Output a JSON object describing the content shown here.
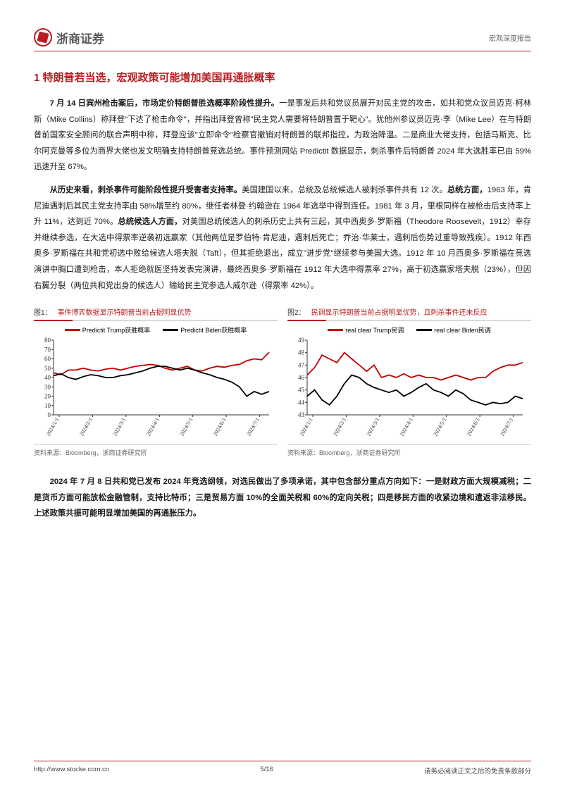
{
  "header": {
    "company": "浙商证券",
    "report_type": "宏观深度报告"
  },
  "section_title": "1 特朗普若当选，宏观政策可能增加美国再通胀概率",
  "para1_lead": "7 月 14 日宾州枪击案后，市场定价特朗普胜选概率阶段性提升。",
  "para1_body": "一是事发后共和党议员展开对民主党的攻击，如共和党众议员迈克·柯林斯（Mike Collins）称拜登\"下达了枪击命令\"，并指出拜登曾称\"民主党人需要将特朗普置于靶心\"。犹他州参议员迈克·李（Mike Lee）在与特朗普前国家安全顾问的联合声明中称，拜登应该\"立即命令\"检察官撤销对特朗普的联邦指控，为政治降温。二是商业大佬支持，包括马斯克、比尔阿克曼等多位为商界大佬也发文明确支持特朗普竞选总统。事件预测网站 Predictit 数据显示，刺杀事件后特朗普 2024 年大选胜率已由 59%迅速升至 67%。",
  "para2_lead": "从历史来看，刺杀事件可能阶段性提升受害者支持率。",
  "para2_body1": "美国建国以来，总统及总统候选人被刺杀事件共有 12 次。",
  "para2_bold2": "总统方面，",
  "para2_body2": "1963 年，肯尼迪遇刺后其民主党支持率由 58%增至约 80%，继任者林登·约翰逊在 1964 年选举中得到连任。1981 年 3 月，里根同样在被枪击后支持率上升 11%，达到近 70%。",
  "para2_bold3": "总统候选人方面，",
  "para2_body3": "对美国总统候选人的刺杀历史上共有三起，其中西奥多·罗斯福（Theodore Roosevelt，1912）幸存并继续参选，在大选中得票率逆袭初选赢家（其他两位是罗伯特·肯尼迪，遇刺后死亡；乔治·华莱士，遇刺后伤势过重导致残疾）。1912 年西奥多·罗斯福在共和党初选中败给候选人塔夫脱（Taft），但其拒绝退出，成立\"进步党\"继续参与美国大选。1912 年 10 月西奥多·罗斯福在竞选演讲中胸口遭到枪击，本人拒绝就医坚持发表完演讲，最终西奥多·罗斯福在 1912 年大选中得票率 27%，高于初选赢家塔夫脱（23%），但因右翼分裂（两位共和党出身的候选人）输给民主党参选人威尔逊（得票率 42%）。",
  "chart1": {
    "fig_label": "图1：",
    "title": "事件博弈数据显示特朗普当前占据明显优势",
    "legend": [
      {
        "label": "Predictit Trump获胜概率",
        "color": "#c00000"
      },
      {
        "label": "Predictit Biden获胜概率",
        "color": "#000000"
      }
    ],
    "categories": [
      "2024/1/1",
      "2024/2/1",
      "2024/3/1",
      "2024/4/1",
      "2024/5/1",
      "2024/6/1",
      "2024/7/1"
    ],
    "x_ticks": [
      0,
      1,
      2,
      3,
      4,
      5,
      6
    ],
    "ylim": [
      0,
      80
    ],
    "yticks": [
      0,
      10,
      20,
      30,
      40,
      50,
      60,
      70,
      80
    ],
    "series": [
      {
        "color": "#c00000",
        "data": [
          45,
          43,
          48,
          48,
          50,
          48,
          47,
          49,
          50,
          48,
          50,
          52,
          53,
          54,
          53,
          50,
          48,
          50,
          52,
          48,
          47,
          50,
          52,
          51,
          53,
          54,
          58,
          60,
          59,
          67
        ]
      },
      {
        "color": "#000000",
        "data": [
          42,
          44,
          40,
          38,
          41,
          43,
          42,
          40,
          40,
          42,
          43,
          45,
          47,
          50,
          52,
          52,
          50,
          48,
          50,
          48,
          45,
          43,
          40,
          38,
          35,
          30,
          20,
          25,
          22,
          25
        ]
      }
    ],
    "source": "资料来源：Bloomberg，浙商证券研究所"
  },
  "chart2": {
    "fig_label": "图2：",
    "title": "民调显示特朗普当前占据明显优势，且刺杀事件还未反应",
    "legend": [
      {
        "label": "real clear Trump民调",
        "color": "#c00000"
      },
      {
        "label": "real clear Biden民调",
        "color": "#000000"
      }
    ],
    "categories": [
      "2024/1/1",
      "2024/2/1",
      "2024/3/1",
      "2024/4/1",
      "2024/5/1",
      "2024/6/1",
      "2024/7/1"
    ],
    "x_ticks": [
      0,
      1,
      2,
      3,
      4,
      5,
      6
    ],
    "ylim": [
      43,
      49
    ],
    "yticks": [
      43,
      44,
      45,
      46,
      47,
      48,
      49
    ],
    "series": [
      {
        "color": "#c00000",
        "data": [
          46.2,
          46.8,
          47.8,
          47.5,
          47.2,
          48.0,
          47.5,
          47.0,
          46.5,
          47.0,
          46.0,
          46.2,
          46.0,
          46.3,
          46.0,
          46.2,
          46.0,
          46.0,
          45.8,
          46.0,
          46.2,
          46.0,
          45.8,
          46.0,
          46.0,
          46.5,
          46.8,
          47.0,
          47.0,
          47.2
        ]
      },
      {
        "color": "#000000",
        "data": [
          44.5,
          45.0,
          44.2,
          43.8,
          44.5,
          45.5,
          46.2,
          46.0,
          45.5,
          45.2,
          45.0,
          44.8,
          45.0,
          44.5,
          44.8,
          45.2,
          45.5,
          45.0,
          44.8,
          44.5,
          45.0,
          44.7,
          44.2,
          44.0,
          43.8,
          44.0,
          43.9,
          44.0,
          44.5,
          44.3
        ]
      }
    ],
    "source": "资料来源：Bloomberg，浙商证券研究所"
  },
  "para3_lead": "2024 年 7 月 8 日共和党已发布 2024 年竞选纲领，对选民做出了多项承诺，其中包含部分重点方向如下：一是财政方面大规模减税；二是货币方面可能放松金融管制，支持比特币；三是贸易方面 10%的全面关税和 60%的定向关税；四是移民方面的收紧边境和遣返非法移民。上述政策共振可能明显增加美国的再通胀压力。",
  "footer": {
    "url": "http://www.stocke.com.cn",
    "page": "5/16",
    "disclaimer": "请务必阅读正文之后的免责条款部分"
  }
}
